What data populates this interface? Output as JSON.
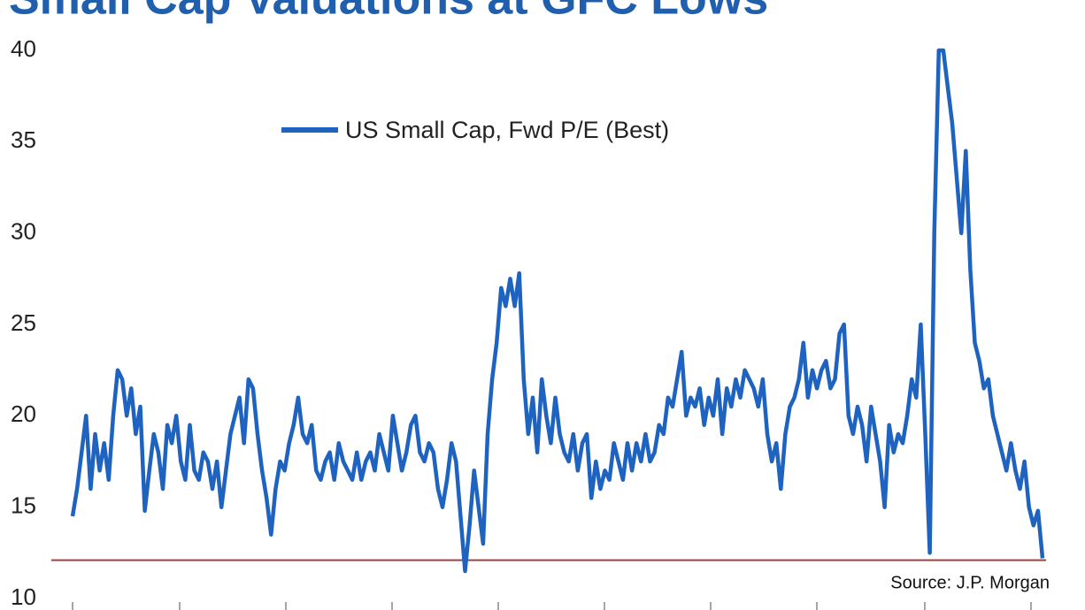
{
  "chart_data": {
    "type": "line",
    "title": "Small Cap Valuations at GFC Lows",
    "source": "Source: J.P. Morgan",
    "ylim": [
      10,
      40
    ],
    "yticks": [
      10,
      15,
      20,
      25,
      30,
      35,
      40
    ],
    "reference_line": {
      "value": 12.1,
      "color": "#a04040"
    },
    "series": [
      {
        "name": "US Small Cap, Fwd P/E (Best)",
        "color": "#1f63c0",
        "values": [
          14.5,
          16,
          18,
          20,
          16,
          19,
          17,
          18.5,
          16.5,
          20,
          22.5,
          22,
          20,
          21.5,
          19,
          20.5,
          14.8,
          17,
          19,
          18,
          16,
          19.5,
          18.5,
          20,
          17.5,
          16.5,
          19.5,
          17,
          16.5,
          18,
          17.5,
          16,
          17.5,
          15,
          17,
          19,
          20,
          21,
          18.5,
          22,
          21.5,
          19,
          17,
          15.5,
          13.5,
          16,
          17.5,
          17,
          18.5,
          19.5,
          21,
          19,
          18.5,
          19.5,
          17,
          16.5,
          17.5,
          18,
          16.5,
          18.5,
          17.5,
          17,
          16.5,
          18,
          16.5,
          17.5,
          18,
          17,
          19,
          18,
          17,
          20,
          18.5,
          17,
          18,
          19.5,
          20,
          18,
          17.5,
          18.5,
          18,
          16,
          15,
          16.5,
          18.5,
          17.5,
          14.5,
          11.5,
          14,
          17,
          15,
          13,
          19,
          22,
          24,
          27,
          26,
          27.5,
          26,
          27.8,
          22,
          19,
          21,
          18,
          22,
          20,
          18.5,
          21,
          19,
          18,
          17.5,
          19,
          17,
          18.5,
          19,
          15.5,
          17.5,
          16,
          17,
          16.5,
          18.5,
          17.5,
          16.5,
          18.5,
          17,
          18.5,
          17.5,
          19,
          17.5,
          18,
          19.5,
          19,
          21,
          20.5,
          22,
          23.5,
          20,
          21,
          20.5,
          21.5,
          19.5,
          21,
          20,
          22,
          19,
          21.5,
          20.5,
          22,
          21,
          22.5,
          22,
          21.5,
          20.5,
          22,
          19,
          17.5,
          18.5,
          16,
          19,
          20.5,
          21,
          22,
          24,
          21,
          22.5,
          21.5,
          22.5,
          23,
          21.5,
          22,
          24.5,
          25,
          20,
          19,
          20.5,
          19.5,
          17.5,
          20.5,
          19,
          17.5,
          15,
          19.5,
          18,
          19,
          18.5,
          20,
          22,
          21,
          25,
          19,
          12.5,
          30,
          40,
          40,
          38,
          36,
          33,
          30,
          34.5,
          28,
          24,
          23,
          21.5,
          22,
          20,
          19,
          18,
          17,
          18.5,
          17,
          16,
          17.5,
          15,
          14,
          14.8,
          12.2
        ]
      }
    ]
  }
}
